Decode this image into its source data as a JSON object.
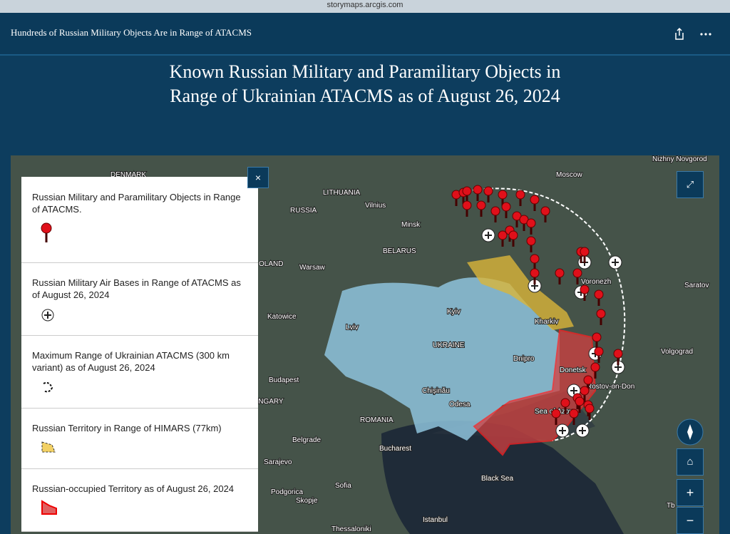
{
  "browser": {
    "url": "storymaps.arcgis.com"
  },
  "header": {
    "title": "Hundreds of Russian Military Objects Are in Range of ATACMS"
  },
  "story": {
    "title_lines": [
      "Known Russian Military and Paramilitary Objects in",
      "Range of Ukrainian ATACMS as of August 26, 2024"
    ]
  },
  "legend": {
    "items": [
      "Russian Military and Paramilitary Objects in Range of ATACMS.",
      "Russian Military Air Bases in Range of ATACMS as of August 26, 2024",
      "Maximum Range of Ukrainian ATACMS (300 km variant) as of August 26, 2024",
      "Russian Territory in Range of HIMARS (77km)",
      "Russian-occupied Territory as of August 26, 2024"
    ]
  },
  "map": {
    "labels": [
      "Nizhny Novgorod",
      "Moscow",
      "DENMARK",
      "LITHUANIA",
      "Vilnius",
      "RUSSIA",
      "Minsk",
      "BELARUS",
      "OLAND",
      "Warsaw",
      "Voronezh",
      "Saratov",
      "Kyiv",
      "Katowice",
      "Lviv",
      "Kharkiv",
      "UKRAINE",
      "Volgograd",
      "Dnipro",
      "Donetsk",
      "Rostov-on-Don",
      "Budapest",
      "Chișinău",
      "UNGARY",
      "Odesa",
      "Sea of Azov",
      "ROMANIA",
      "Belgrade",
      "Bucharest",
      "Sarajevo",
      "Black Sea",
      "Sofia",
      "Podgorica",
      "Skopje",
      "Istanbul",
      "Thessaloniki",
      "Tb"
    ]
  }
}
